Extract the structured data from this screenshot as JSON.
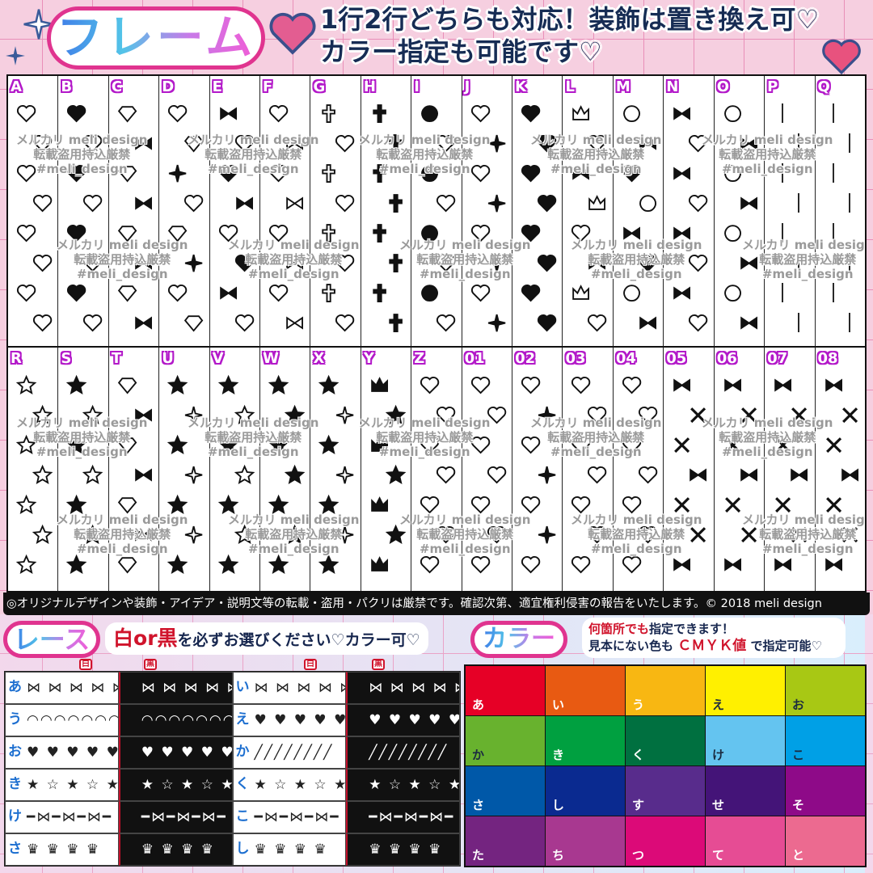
{
  "header": {
    "frame_title": "フレーム",
    "line1": "1行2行どちらも対応！装飾は置き換え可♡",
    "line2": "カラー指定も可能です♡"
  },
  "watermark": {
    "line1": "メルカリ meli design",
    "line2": "転載盗用持込厳禁",
    "tag": "#meli_design"
  },
  "frames": {
    "row1": [
      {
        "label": "A",
        "motif": "heart-outline"
      },
      {
        "label": "B",
        "motif": "heart"
      },
      {
        "label": "C",
        "motif": "diamond"
      },
      {
        "label": "D",
        "motif": "heart-diamond"
      },
      {
        "label": "E",
        "motif": "bow-heart"
      },
      {
        "label": "F",
        "motif": "wing-heart"
      },
      {
        "label": "G",
        "motif": "cross-bat"
      },
      {
        "label": "H",
        "motif": "cross"
      },
      {
        "label": "I",
        "motif": "rose"
      },
      {
        "label": "J",
        "motif": "heart-sparkle"
      },
      {
        "label": "K",
        "motif": "heart-solid"
      },
      {
        "label": "L",
        "motif": "crown"
      },
      {
        "label": "M",
        "motif": "lollipop"
      },
      {
        "label": "N",
        "motif": "candy"
      },
      {
        "label": "O",
        "motif": "bear"
      },
      {
        "label": "P",
        "motif": "chain"
      },
      {
        "label": "Q",
        "motif": "chain-curve"
      }
    ],
    "row2": [
      {
        "label": "R",
        "motif": "star-outline"
      },
      {
        "label": "S",
        "motif": "star"
      },
      {
        "label": "T",
        "motif": "diamond-bow"
      },
      {
        "label": "U",
        "motif": "star-sparkle"
      },
      {
        "label": "V",
        "motif": "star-mix"
      },
      {
        "label": "W",
        "motif": "star-big"
      },
      {
        "label": "X",
        "motif": "star-sparkle"
      },
      {
        "label": "Y",
        "motif": "crown-star"
      },
      {
        "label": "Z",
        "motif": "bow"
      },
      {
        "label": "01",
        "motif": "heart-outline"
      },
      {
        "label": "02",
        "motif": "heart-sparkle"
      },
      {
        "label": "03",
        "motif": "heart-outline"
      },
      {
        "label": "04",
        "motif": "heart-outline"
      },
      {
        "label": "05",
        "motif": "ribbon-cross"
      },
      {
        "label": "06",
        "motif": "ribbon-cross"
      },
      {
        "label": "07",
        "motif": "ribbon-cross"
      },
      {
        "label": "08",
        "motif": "ribbon-cross"
      }
    ]
  },
  "copyright": "◎オリジナルデザインや装飾・アイデア・説明文等の転載・盗用・パクリは厳禁です。確認次第、適宜権利侵害の報告をいたします。© 2018 meli design",
  "lace": {
    "title": "レース",
    "white": "白",
    "or": "or",
    "black": "黒",
    "instruction": "を必ずお選びください♡カラー可♡",
    "badges": [
      "白",
      "黒",
      "白",
      "黒"
    ],
    "rows": [
      {
        "left": "あ",
        "right": "い",
        "motif_left": "bow",
        "motif_right": "bow"
      },
      {
        "left": "う",
        "right": "え",
        "motif_left": "scallop",
        "motif_right": "heart"
      },
      {
        "left": "お",
        "right": "か",
        "motif_left": "heart",
        "motif_right": "fringe"
      },
      {
        "left": "き",
        "right": "く",
        "motif_left": "star",
        "motif_right": "star"
      },
      {
        "left": "け",
        "right": "こ",
        "motif_left": "bow-line",
        "motif_right": "bow-line"
      },
      {
        "left": "さ",
        "right": "し",
        "motif_left": "crown",
        "motif_right": "crown"
      }
    ]
  },
  "color": {
    "title": "カラー",
    "note_red": "何箇所でも",
    "note_line1": "指定できます！",
    "note_line2a": "見本にない色も",
    "note_cmyk": "ＣＭＹＫ値",
    "note_line2b": "で指定可能♡",
    "swatches": [
      {
        "label": "あ",
        "hex": "#e60026",
        "text": "#ffffff"
      },
      {
        "label": "い",
        "hex": "#e85a12",
        "text": "#ffffff"
      },
      {
        "label": "う",
        "hex": "#f8b712",
        "text": "#ffffff"
      },
      {
        "label": "え",
        "hex": "#fff000",
        "text": "#1b2b40"
      },
      {
        "label": "お",
        "hex": "#a8c814",
        "text": "#1b2b40"
      },
      {
        "label": "か",
        "hex": "#68b22e",
        "text": "#1b2b40"
      },
      {
        "label": "き",
        "hex": "#00a040",
        "text": "#ffffff"
      },
      {
        "label": "く",
        "hex": "#007040",
        "text": "#ffffff"
      },
      {
        "label": "け",
        "hex": "#64c4f0",
        "text": "#1b2b40"
      },
      {
        "label": "こ",
        "hex": "#00a0e6",
        "text": "#1b2b40"
      },
      {
        "label": "さ",
        "hex": "#0058a8",
        "text": "#ffffff"
      },
      {
        "label": "し",
        "hex": "#0a2a90",
        "text": "#ffffff"
      },
      {
        "label": "す",
        "hex": "#582c8c",
        "text": "#ffffff"
      },
      {
        "label": "せ",
        "hex": "#441478",
        "text": "#ffffff"
      },
      {
        "label": "そ",
        "hex": "#8e0a88",
        "text": "#ffffff"
      },
      {
        "label": "た",
        "hex": "#742480",
        "text": "#ffffff"
      },
      {
        "label": "ち",
        "hex": "#a83890",
        "text": "#ffffff"
      },
      {
        "label": "つ",
        "hex": "#dc0a78",
        "text": "#ffffff"
      },
      {
        "label": "て",
        "hex": "#e64c94",
        "text": "#ffffff"
      },
      {
        "label": "と",
        "hex": "#ec6a90",
        "text": "#ffffff"
      }
    ]
  }
}
